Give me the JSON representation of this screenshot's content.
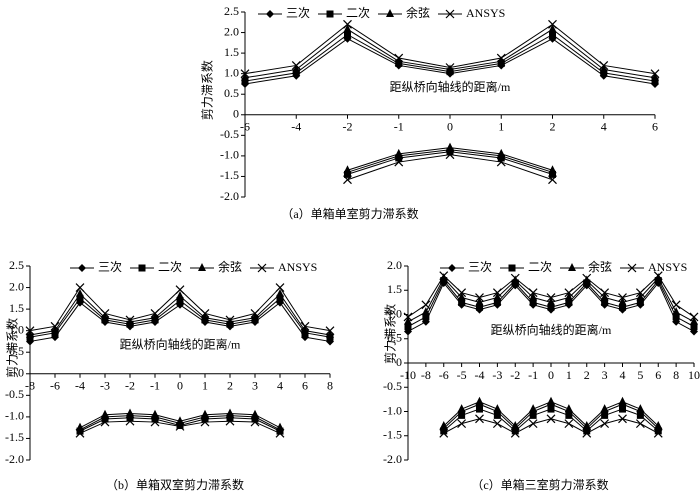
{
  "chart_data": [
    {
      "type": "line",
      "caption": "（a）单箱单室剪力滞系数",
      "y_label": "剪力滞系数",
      "x_label": "距纵桥向轴线的距离/m",
      "categories": [
        "-6",
        "-4",
        "-2",
        "-1",
        "0",
        "1",
        "2",
        "4",
        "6"
      ],
      "ylim": [
        -2,
        2.5
      ],
      "yticks": [
        {
          "value": -2,
          "label": "-2.0"
        },
        -1.5,
        {
          "value": -1,
          "label": "-1.0"
        },
        -0.5,
        0,
        0.5,
        {
          "value": 1,
          "label": "1.0"
        },
        1.5,
        {
          "value": 2,
          "label": "2.0"
        },
        2.5
      ],
      "series": [
        {
          "name": "三次",
          "color": "#000000",
          "marker": "diamond",
          "values": [
            0.75,
            0.95,
            1.85,
            1.2,
            1.0,
            1.2,
            1.85,
            0.95,
            0.75
          ],
          "lower_values": [
            null,
            null,
            -1.4,
            -1.0,
            -0.85,
            -1.0,
            -1.4,
            null,
            null
          ]
        },
        {
          "name": "二次",
          "color": "#000000",
          "marker": "square",
          "values": [
            0.82,
            1.02,
            1.95,
            1.25,
            1.05,
            1.25,
            1.95,
            1.02,
            0.82
          ],
          "lower_values": [
            null,
            null,
            -1.45,
            -1.05,
            -0.9,
            -1.05,
            -1.45,
            null,
            null
          ]
        },
        {
          "name": "余弦",
          "color": "#000000",
          "marker": "triangle",
          "values": [
            0.9,
            1.1,
            2.08,
            1.3,
            1.1,
            1.3,
            2.08,
            1.1,
            0.9
          ],
          "lower_values": [
            null,
            null,
            -1.35,
            -0.95,
            -0.8,
            -0.95,
            -1.35,
            null,
            null
          ]
        },
        {
          "name": "ANSYS",
          "color": "#000000",
          "marker": "x",
          "values": [
            1.0,
            1.2,
            2.2,
            1.38,
            1.15,
            1.38,
            2.2,
            1.2,
            1.0
          ],
          "lower_values": [
            null,
            null,
            -1.58,
            -1.15,
            -0.97,
            -1.15,
            -1.58,
            null,
            null
          ]
        }
      ]
    },
    {
      "type": "line",
      "caption": "（b）单箱双室剪力滞系数",
      "y_label": "剪力滞系数",
      "x_label": "距纵桥向轴线的距离/m",
      "categories": [
        "-8",
        "-6",
        "-4",
        "-3",
        "-2",
        "-1",
        "0",
        "1",
        "2",
        "3",
        "4",
        "6",
        "8"
      ],
      "ylim": [
        -2,
        2.5
      ],
      "yticks": [
        {
          "value": -2,
          "label": "-2.0"
        },
        -1.5,
        {
          "value": -1,
          "label": "-1.0"
        },
        -0.5,
        0,
        0.5,
        {
          "value": 1,
          "label": "1.0"
        },
        1.5,
        {
          "value": 2,
          "label": "2.0"
        },
        2.5
      ],
      "series": [
        {
          "name": "三次",
          "color": "#000000",
          "marker": "diamond",
          "values": [
            0.75,
            0.85,
            1.65,
            1.2,
            1.1,
            1.2,
            1.6,
            1.2,
            1.1,
            1.2,
            1.65,
            0.85,
            0.75
          ],
          "lower_values": [
            null,
            null,
            -1.3,
            -1.0,
            -0.97,
            -1.0,
            -1.15,
            -1.0,
            -0.97,
            -1.0,
            -1.3,
            null,
            null
          ]
        },
        {
          "name": "二次",
          "color": "#000000",
          "marker": "square",
          "values": [
            0.85,
            0.95,
            1.75,
            1.25,
            1.15,
            1.25,
            1.7,
            1.25,
            1.15,
            1.25,
            1.75,
            0.95,
            0.85
          ],
          "lower_values": [
            null,
            null,
            -1.33,
            -1.05,
            -1.02,
            -1.05,
            -1.2,
            -1.05,
            -1.02,
            -1.05,
            -1.33,
            null,
            null
          ]
        },
        {
          "name": "余弦",
          "color": "#000000",
          "marker": "triangle",
          "values": [
            0.9,
            1.0,
            1.85,
            1.3,
            1.2,
            1.3,
            1.8,
            1.3,
            1.2,
            1.3,
            1.85,
            1.0,
            0.9
          ],
          "lower_values": [
            null,
            null,
            -1.25,
            -0.95,
            -0.92,
            -0.95,
            -1.1,
            -0.95,
            -0.92,
            -0.95,
            -1.25,
            null,
            null
          ]
        },
        {
          "name": "ANSYS",
          "color": "#000000",
          "marker": "x",
          "values": [
            1.0,
            1.1,
            2.0,
            1.4,
            1.25,
            1.4,
            1.95,
            1.4,
            1.25,
            1.4,
            2.0,
            1.1,
            1.0
          ],
          "lower_values": [
            null,
            null,
            -1.38,
            -1.12,
            -1.1,
            -1.12,
            -1.22,
            -1.12,
            -1.1,
            -1.12,
            -1.38,
            null,
            null
          ]
        }
      ]
    },
    {
      "type": "line",
      "caption": "（c）单箱三室剪力滞系数",
      "y_label": "剪力滞系数",
      "x_label": "距纵桥向轴线的距离/m",
      "categories": [
        "-10",
        "-8",
        "-6",
        "-5",
        "-4",
        "-3",
        "-2",
        "-1",
        "0",
        "1",
        "2",
        "3",
        "4",
        "5",
        "6",
        "8",
        "10"
      ],
      "ylim": [
        -2,
        2
      ],
      "yticks": [
        {
          "value": -2,
          "label": "-2.0"
        },
        -1.5,
        {
          "value": -1,
          "label": "-1.0"
        },
        -0.5,
        0,
        0.5,
        {
          "value": 1,
          "label": "1.0"
        },
        1.5,
        {
          "value": 2,
          "label": "2.0"
        }
      ],
      "series": [
        {
          "name": "三次",
          "color": "#000000",
          "marker": "diamond",
          "values": [
            0.65,
            0.85,
            1.65,
            1.2,
            1.1,
            1.2,
            1.6,
            1.2,
            1.1,
            1.2,
            1.6,
            1.2,
            1.1,
            1.2,
            1.65,
            0.85,
            0.65
          ],
          "lower_values": [
            null,
            null,
            -1.35,
            -1.0,
            -0.85,
            -1.0,
            -1.35,
            -1.0,
            -0.85,
            -1.0,
            -1.35,
            -1.0,
            -0.85,
            -1.0,
            -1.35,
            null,
            null
          ]
        },
        {
          "name": "二次",
          "color": "#000000",
          "marker": "square",
          "values": [
            0.75,
            0.95,
            1.7,
            1.25,
            1.15,
            1.25,
            1.65,
            1.25,
            1.15,
            1.25,
            1.65,
            1.25,
            1.15,
            1.25,
            1.7,
            0.95,
            0.75
          ],
          "lower_values": [
            null,
            null,
            -1.4,
            -1.08,
            -0.95,
            -1.08,
            -1.4,
            -1.08,
            -0.95,
            -1.08,
            -1.4,
            -1.08,
            -0.95,
            -1.08,
            -1.4,
            null,
            null
          ]
        },
        {
          "name": "余弦",
          "color": "#000000",
          "marker": "triangle",
          "values": [
            0.85,
            1.05,
            1.75,
            1.35,
            1.25,
            1.35,
            1.7,
            1.35,
            1.25,
            1.35,
            1.7,
            1.35,
            1.25,
            1.35,
            1.75,
            1.05,
            0.85
          ],
          "lower_values": [
            null,
            null,
            -1.3,
            -0.95,
            -0.8,
            -0.95,
            -1.3,
            -0.95,
            -0.8,
            -0.95,
            -1.3,
            -0.95,
            -0.8,
            -0.95,
            -1.3,
            null,
            null
          ]
        },
        {
          "name": "ANSYS",
          "color": "#000000",
          "marker": "x",
          "values": [
            0.95,
            1.2,
            1.8,
            1.45,
            1.35,
            1.45,
            1.75,
            1.45,
            1.35,
            1.45,
            1.75,
            1.45,
            1.35,
            1.45,
            1.8,
            1.2,
            0.95
          ],
          "lower_values": [
            null,
            null,
            -1.45,
            -1.25,
            -1.15,
            -1.25,
            -1.45,
            -1.25,
            -1.15,
            -1.25,
            -1.45,
            -1.25,
            -1.15,
            -1.25,
            -1.45,
            null,
            null
          ]
        }
      ]
    }
  ]
}
